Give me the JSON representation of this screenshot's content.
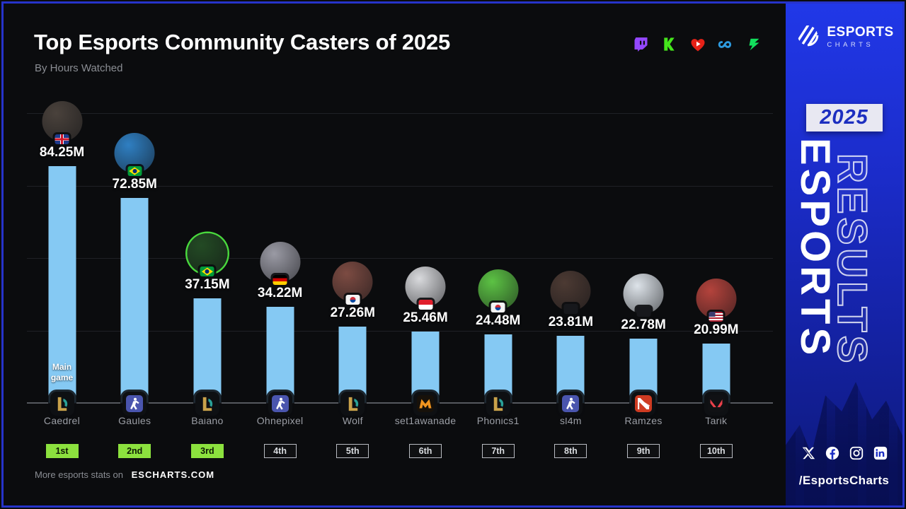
{
  "header": {
    "title": "Top Esports Community Casters of 2025",
    "subtitle": "By Hours Watched",
    "platforms": [
      {
        "key": "twitch",
        "name": "Twitch",
        "color": "#9347FF"
      },
      {
        "key": "kick",
        "name": "Kick",
        "color": "#45E51C"
      },
      {
        "key": "heart-play",
        "name": "Heart",
        "color": "#E62117"
      },
      {
        "key": "soop",
        "name": "SOOP",
        "color": "#2D9BE0"
      },
      {
        "key": "chzzk",
        "name": "Chzzk",
        "color": "#12E05C"
      }
    ]
  },
  "chart_data": {
    "type": "bar",
    "title": "Top Esports Community Casters of 2025",
    "metric": "Hours Watched",
    "unit": "millions of hours",
    "ylim": [
      0,
      90
    ],
    "grid": true,
    "legend": "none",
    "bar_color": "#85C9F3",
    "annotation": "Main game",
    "top3_badge_color": "#8CE13E",
    "categories": [
      "Caedrel",
      "Gaules",
      "Baiano",
      "Ohnepixel",
      "Wolf",
      "set1awanade",
      "Phonics1",
      "sl4m",
      "Ramzes",
      "Tarik"
    ],
    "values": [
      84.25,
      72.85,
      37.15,
      34.22,
      27.26,
      25.46,
      24.48,
      23.81,
      22.78,
      20.99
    ],
    "casters": [
      {
        "rank": "1st",
        "name": "Caedrel",
        "value": 84.25,
        "label": "84.25M",
        "flag": "GB",
        "game": "League of Legends",
        "game_key": "lol",
        "avatar_color": "#4a423c",
        "ring": ""
      },
      {
        "rank": "2nd",
        "name": "Gaules",
        "value": 72.85,
        "label": "72.85M",
        "flag": "BR",
        "game": "Counter-Strike 2",
        "game_key": "cs2",
        "avatar_color": "#2f7fc2",
        "ring": ""
      },
      {
        "rank": "3rd",
        "name": "Baiano",
        "value": 37.15,
        "label": "37.15M",
        "flag": "BR",
        "game": "League of Legends",
        "game_key": "lol",
        "avatar_color": "#234a24",
        "ring": "#49d83d"
      },
      {
        "rank": "4th",
        "name": "Ohnepixel",
        "value": 34.22,
        "label": "34.22M",
        "flag": "DE",
        "game": "Counter-Strike 2",
        "game_key": "cs2",
        "avatar_color": "#9a9aa4",
        "ring": ""
      },
      {
        "rank": "5th",
        "name": "Wolf",
        "value": 27.26,
        "label": "27.26M",
        "flag": "KR",
        "game": "League of Legends",
        "game_key": "lol",
        "avatar_color": "#7c4b42",
        "ring": ""
      },
      {
        "rank": "6th",
        "name": "set1awanade",
        "value": 25.46,
        "label": "25.46M",
        "flag": "ID",
        "game": "Mobile Legends: Bang Bang",
        "game_key": "mlbb",
        "avatar_color": "#d9dadd",
        "ring": ""
      },
      {
        "rank": "7th",
        "name": "Phonics1",
        "value": 24.48,
        "label": "24.48M",
        "flag": "KR",
        "game": "League of Legends",
        "game_key": "lol",
        "avatar_color": "#5cc244",
        "ring": ""
      },
      {
        "rank": "8th",
        "name": "sl4m",
        "value": 23.81,
        "label": "23.81M",
        "flag": "XX",
        "game": "Counter-Strike 2",
        "game_key": "cs2",
        "avatar_color": "#4c3a33",
        "ring": ""
      },
      {
        "rank": "9th",
        "name": "Ramzes",
        "value": 22.78,
        "label": "22.78M",
        "flag": "XX",
        "game": "Dota 2",
        "game_key": "dota2",
        "avatar_color": "#dde3e9",
        "ring": ""
      },
      {
        "rank": "10th",
        "name": "Tarik",
        "value": 20.99,
        "label": "20.99M",
        "flag": "US",
        "game": "VALORANT",
        "game_key": "valorant",
        "avatar_color": "#b4433c",
        "ring": ""
      }
    ]
  },
  "sidebar": {
    "brand": {
      "name": "ESPORTS",
      "sub": "CHARTS"
    },
    "year": "2025",
    "vertical_front": "ESPORTS",
    "vertical_back": "RESULTS",
    "socials": [
      "x",
      "facebook",
      "instagram",
      "linkedin"
    ],
    "handle": "/EsportsCharts"
  },
  "footer": {
    "prefix": "More esports stats on",
    "site": "ESCHARTS.COM"
  }
}
